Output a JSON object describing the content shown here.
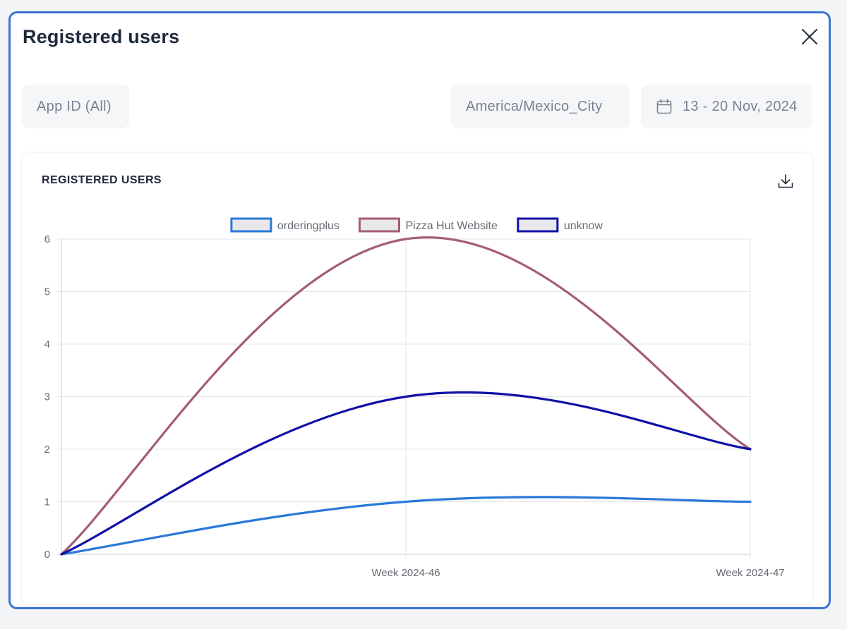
{
  "modal": {
    "title": "Registered users",
    "close_icon": "close-icon"
  },
  "filters": {
    "app_id": "App ID (All)",
    "timezone": "America/Mexico_City",
    "date_range": "13 - 20 Nov, 2024",
    "date_icon": "calendar-icon"
  },
  "card": {
    "title": "REGISTERED USERS",
    "download_icon": "download-icon"
  },
  "colors": {
    "modal_border": "#3a74d0",
    "orderingplus": "#2a78da",
    "pizza_hut": "#a45d72",
    "unknow": "#1010a8"
  },
  "chart_data": {
    "type": "line",
    "x": [
      "",
      "Week 2024-46",
      "Week 2024-47"
    ],
    "ylim": [
      0,
      6
    ],
    "yticks": [
      0,
      1,
      2,
      3,
      4,
      5,
      6
    ],
    "grid": true,
    "legend": "top",
    "series": [
      {
        "name": "orderingplus",
        "values": [
          0,
          1,
          1
        ],
        "color": "#2a78da"
      },
      {
        "name": "Pizza Hut Website",
        "values": [
          0,
          6,
          2
        ],
        "color": "#a45d72"
      },
      {
        "name": "unknow",
        "values": [
          0,
          3,
          2
        ],
        "color": "#1010a8"
      }
    ]
  }
}
